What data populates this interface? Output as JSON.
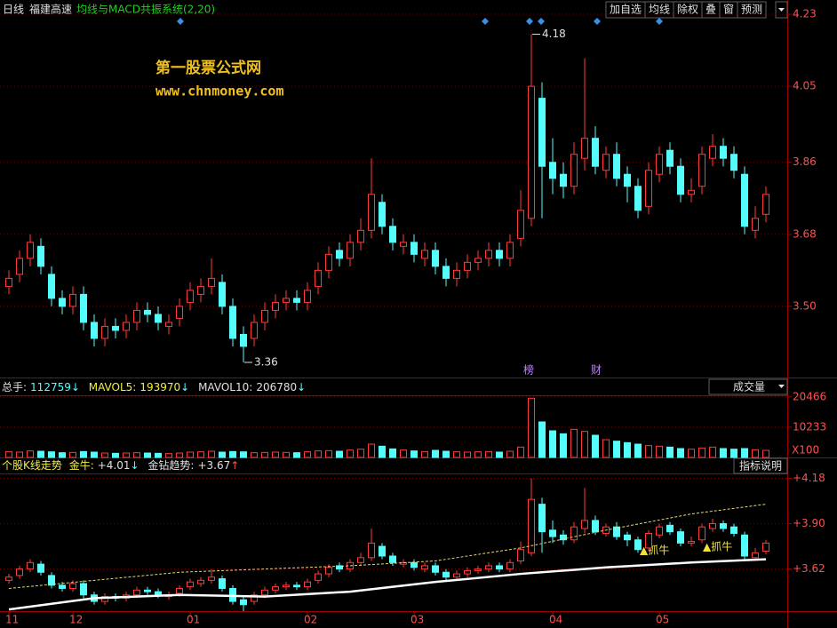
{
  "toolbar": {
    "period": "日线",
    "stock": "福建高速",
    "system": "均线与MACD共振系统(2,20)",
    "buttons": [
      "加自选",
      "均线",
      "除权",
      "叠",
      "窗",
      "预测"
    ]
  },
  "watermark": {
    "title": "第一股票公式网",
    "url": "www.chnmoney.com"
  },
  "chart_data": [
    {
      "type": "candlestick",
      "categories": [
        "11",
        null,
        null,
        null,
        null,
        null,
        "12",
        null,
        null,
        null,
        null,
        null,
        null,
        null,
        null,
        null,
        null,
        "01",
        null,
        null,
        null,
        null,
        null,
        null,
        null,
        null,
        null,
        null,
        "02",
        null,
        null,
        null,
        null,
        null,
        null,
        null,
        null,
        null,
        "03",
        null,
        null,
        null,
        null,
        null,
        null,
        null,
        null,
        null,
        null,
        null,
        null,
        "04",
        null,
        null,
        null,
        null,
        null,
        null,
        null,
        null,
        null,
        "05",
        null,
        null,
        null,
        null,
        null,
        null,
        null,
        null,
        null,
        null
      ],
      "open": [
        3.55,
        3.58,
        3.62,
        3.65,
        3.58,
        3.52,
        3.5,
        3.53,
        3.46,
        3.42,
        3.45,
        3.44,
        3.46,
        3.49,
        3.48,
        3.45,
        3.47,
        3.51,
        3.53,
        3.55,
        3.56,
        3.5,
        3.43,
        3.42,
        3.46,
        3.49,
        3.51,
        3.52,
        3.51,
        3.55,
        3.59,
        3.64,
        3.62,
        3.66,
        3.69,
        3.76,
        3.7,
        3.65,
        3.66,
        3.62,
        3.64,
        3.6,
        3.57,
        3.59,
        3.61,
        3.62,
        3.64,
        3.62,
        3.67,
        3.72,
        4.02,
        3.86,
        3.83,
        3.8,
        3.87,
        3.92,
        3.84,
        3.88,
        3.83,
        3.8,
        3.75,
        3.83,
        3.89,
        3.85,
        3.78,
        3.8,
        3.87,
        3.9,
        3.88,
        3.83,
        3.69,
        3.73
      ],
      "high": [
        3.59,
        3.64,
        3.68,
        3.67,
        3.6,
        3.54,
        3.55,
        3.55,
        3.48,
        3.47,
        3.47,
        3.48,
        3.51,
        3.51,
        3.5,
        3.48,
        3.52,
        3.56,
        3.57,
        3.62,
        3.58,
        3.52,
        3.45,
        3.48,
        3.51,
        3.53,
        3.54,
        3.54,
        3.56,
        3.61,
        3.65,
        3.66,
        3.68,
        3.72,
        3.87,
        3.78,
        3.72,
        3.68,
        3.68,
        3.66,
        3.66,
        3.62,
        3.61,
        3.63,
        3.64,
        3.66,
        3.66,
        3.68,
        3.79,
        4.18,
        4.06,
        3.92,
        3.86,
        3.91,
        4.12,
        3.95,
        3.9,
        3.91,
        3.85,
        3.82,
        3.86,
        3.9,
        3.91,
        3.87,
        3.82,
        3.9,
        3.93,
        3.92,
        3.9,
        3.85,
        3.75,
        3.8
      ],
      "low": [
        3.53,
        3.56,
        3.6,
        3.58,
        3.5,
        3.48,
        3.48,
        3.44,
        3.4,
        3.4,
        3.42,
        3.42,
        3.44,
        3.46,
        3.44,
        3.43,
        3.45,
        3.49,
        3.51,
        3.53,
        3.48,
        3.4,
        3.36,
        3.4,
        3.44,
        3.47,
        3.49,
        3.49,
        3.49,
        3.53,
        3.57,
        3.6,
        3.6,
        3.64,
        3.67,
        3.68,
        3.64,
        3.63,
        3.61,
        3.6,
        3.58,
        3.55,
        3.55,
        3.57,
        3.59,
        3.6,
        3.6,
        3.6,
        3.65,
        3.7,
        3.72,
        3.78,
        3.77,
        3.78,
        3.84,
        3.83,
        3.82,
        3.8,
        3.76,
        3.72,
        3.73,
        3.81,
        3.83,
        3.76,
        3.76,
        3.78,
        3.85,
        3.85,
        3.82,
        3.68,
        3.67,
        3.71
      ],
      "close": [
        3.57,
        3.62,
        3.66,
        3.6,
        3.52,
        3.5,
        3.53,
        3.46,
        3.42,
        3.45,
        3.44,
        3.46,
        3.49,
        3.48,
        3.46,
        3.46,
        3.5,
        3.54,
        3.55,
        3.57,
        3.5,
        3.42,
        3.4,
        3.46,
        3.49,
        3.51,
        3.52,
        3.51,
        3.54,
        3.59,
        3.63,
        3.62,
        3.66,
        3.69,
        3.78,
        3.7,
        3.66,
        3.66,
        3.63,
        3.64,
        3.6,
        3.57,
        3.59,
        3.61,
        3.62,
        3.64,
        3.62,
        3.66,
        3.74,
        4.05,
        3.85,
        3.82,
        3.8,
        3.88,
        3.92,
        3.85,
        3.88,
        3.82,
        3.8,
        3.74,
        3.84,
        3.88,
        3.85,
        3.78,
        3.79,
        3.88,
        3.9,
        3.87,
        3.84,
        3.7,
        3.72,
        3.78
      ],
      "up_color": "#ff3c3c",
      "down_color": "#54fcfc",
      "ylim": [
        3.32,
        4.27
      ],
      "yticks": [
        4.23,
        4.05,
        3.86,
        3.68,
        {
          "value": 3.5,
          "label": "3.50"
        }
      ],
      "event_labels": [
        "榜",
        "财"
      ]
    },
    {
      "type": "bar",
      "title": "成交量",
      "header": [
        {
          "label": "总手:",
          "value": 112759,
          "arrow": "↓"
        },
        {
          "label": "MAVOL5:",
          "value": 193970,
          "arrow": "↓"
        },
        {
          "label": "MAVOL10:",
          "value": 206780,
          "arrow": "↓"
        }
      ],
      "values": [
        2000,
        1800,
        2200,
        2100,
        1900,
        1600,
        1700,
        2000,
        1800,
        1500,
        1400,
        1500,
        1600,
        1500,
        1400,
        1300,
        1500,
        1800,
        1900,
        2100,
        1800,
        2000,
        1900,
        1600,
        1700,
        1800,
        1700,
        1600,
        1900,
        2200,
        2300,
        2100,
        2500,
        2800,
        4500,
        3800,
        2900,
        2500,
        2200,
        2000,
        2400,
        2100,
        1900,
        1800,
        1900,
        2000,
        1800,
        2100,
        3500,
        20000,
        12000,
        9000,
        8000,
        9500,
        8800,
        7500,
        6000,
        5500,
        5000,
        4500,
        4000,
        3800,
        3500,
        3000,
        2800,
        3200,
        3500,
        3000,
        2800,
        3000,
        2600,
        2400
      ],
      "ylim": [
        0,
        21000
      ],
      "yticks": [
        20466,
        10233
      ],
      "unit_label": "X100"
    },
    {
      "type": "indicator",
      "title": "个股K线走势",
      "header": [
        {
          "label": "金牛:",
          "value": 4.01,
          "value_label": "+4.01",
          "arrow": "↓"
        },
        {
          "label": "金钻趋势:",
          "value": 3.67,
          "value_label": "+3.67",
          "arrow": "↑"
        }
      ],
      "button": "指标说明",
      "series": [
        {
          "color": "#e8d870",
          "dashed": true,
          "x": [
            0,
            8,
            16,
            24,
            32,
            40,
            48,
            56,
            64,
            71
          ],
          "values": [
            3.5,
            3.55,
            3.6,
            3.62,
            3.64,
            3.67,
            3.75,
            3.86,
            3.96,
            4.02
          ]
        },
        {
          "color": "#ffffff",
          "dashed": false,
          "x": [
            0,
            8,
            16,
            24,
            32,
            40,
            48,
            56,
            64,
            71
          ],
          "values": [
            3.37,
            3.44,
            3.46,
            3.45,
            3.48,
            3.54,
            3.59,
            3.63,
            3.66,
            3.68
          ]
        }
      ],
      "signals": [
        "▲抓牛",
        "▲抓牛"
      ],
      "ylim": [
        3.36,
        4.21
      ],
      "yticks": [
        {
          "value": 4.18,
          "label": "+4.18"
        },
        {
          "value": 3.9,
          "label": "+3.90"
        },
        {
          "value": 3.62,
          "label": "+3.62"
        }
      ]
    }
  ]
}
